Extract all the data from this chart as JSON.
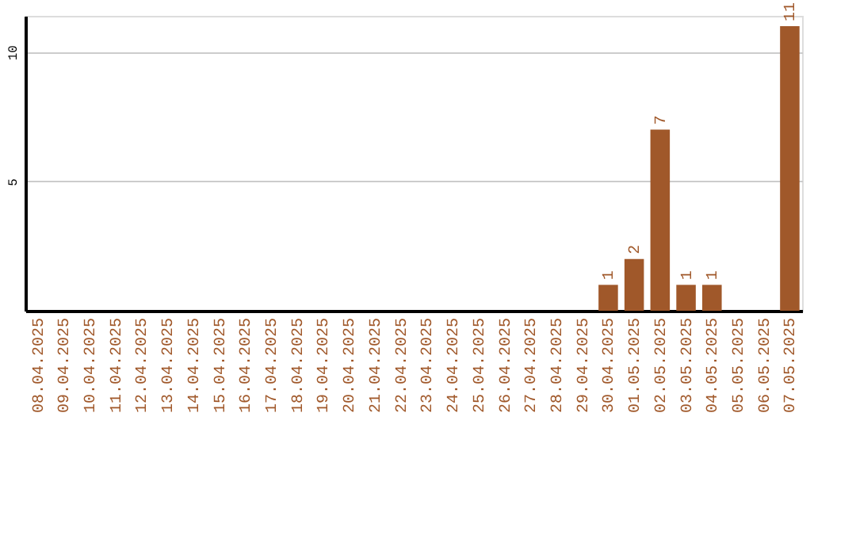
{
  "chart_data": {
    "type": "bar",
    "categories": [
      "08.04.2025",
      "09.04.2025",
      "10.04.2025",
      "11.04.2025",
      "12.04.2025",
      "13.04.2025",
      "14.04.2025",
      "15.04.2025",
      "16.04.2025",
      "17.04.2025",
      "18.04.2025",
      "19.04.2025",
      "20.04.2025",
      "21.04.2025",
      "22.04.2025",
      "23.04.2025",
      "24.04.2025",
      "25.04.2025",
      "26.04.2025",
      "27.04.2025",
      "28.04.2025",
      "29.04.2025",
      "30.04.2025",
      "01.05.2025",
      "02.05.2025",
      "03.05.2025",
      "04.05.2025",
      "05.05.2025",
      "06.05.2025",
      "07.05.2025"
    ],
    "values": [
      0,
      0,
      0,
      0,
      0,
      0,
      0,
      0,
      0,
      0,
      0,
      0,
      0,
      0,
      0,
      0,
      0,
      0,
      0,
      0,
      0,
      0,
      1,
      2,
      7,
      1,
      1,
      0,
      0,
      11
    ],
    "value_labels": [
      null,
      null,
      null,
      null,
      null,
      null,
      null,
      null,
      null,
      null,
      null,
      null,
      null,
      null,
      null,
      null,
      null,
      null,
      null,
      null,
      null,
      null,
      "1",
      "2",
      "7",
      "1",
      "1",
      null,
      null,
      "11"
    ],
    "color": "#a0582a",
    "ylim": [
      0,
      11.4
    ],
    "yticks": [
      5,
      10
    ],
    "grid": "y"
  }
}
